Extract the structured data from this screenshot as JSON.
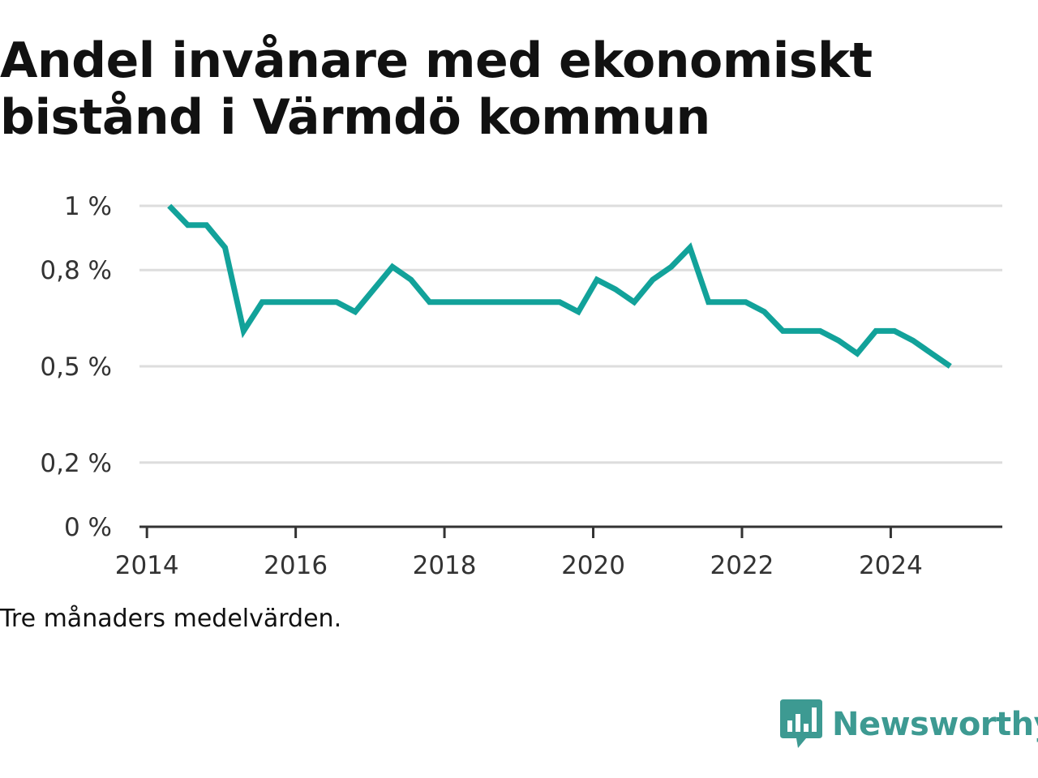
{
  "chart_data": {
    "type": "line",
    "title": "Andel invånare med ekonomiskt bistånd i Värmdö kommun",
    "note": "Tre månaders medelvärden.",
    "x_ticks": [
      "2014",
      "2016",
      "2018",
      "2020",
      "2022",
      "2024"
    ],
    "y_ticks": [
      "0 %",
      "0,2 %",
      "0,5 %",
      "0,8 %",
      "1 %"
    ],
    "y_tick_values": [
      0,
      0.2,
      0.5,
      0.8,
      1.0
    ],
    "ylim": [
      0,
      1.0
    ],
    "xlim": [
      2013.9,
      2025.5
    ],
    "grid": true,
    "series": [
      {
        "color": "#12a29a",
        "x": [
          2014.3,
          2014.55,
          2014.8,
          2015.05,
          2015.3,
          2015.55,
          2015.8,
          2016.05,
          2016.3,
          2016.55,
          2016.8,
          2017.05,
          2017.3,
          2017.55,
          2017.8,
          2018.05,
          2018.3,
          2018.55,
          2018.8,
          2019.05,
          2019.3,
          2019.55,
          2019.8,
          2020.05,
          2020.3,
          2020.55,
          2020.8,
          2021.05,
          2021.3,
          2021.55,
          2021.8,
          2022.05,
          2022.3,
          2022.55,
          2022.8,
          2023.05,
          2023.3,
          2023.55,
          2023.8,
          2024.05,
          2024.3,
          2024.55,
          2024.8
        ],
        "values": [
          1.0,
          0.94,
          0.94,
          0.87,
          0.61,
          0.7,
          0.7,
          0.7,
          0.7,
          0.7,
          0.67,
          0.74,
          0.81,
          0.77,
          0.7,
          0.7,
          0.7,
          0.7,
          0.7,
          0.7,
          0.7,
          0.7,
          0.67,
          0.77,
          0.74,
          0.7,
          0.77,
          0.81,
          0.87,
          0.7,
          0.7,
          0.7,
          0.67,
          0.61,
          0.61,
          0.61,
          0.58,
          0.54,
          0.61,
          0.61,
          0.58,
          0.54,
          0.5
        ]
      }
    ]
  },
  "brand": {
    "name": "Newsworthy",
    "color": "#3d9a92"
  }
}
